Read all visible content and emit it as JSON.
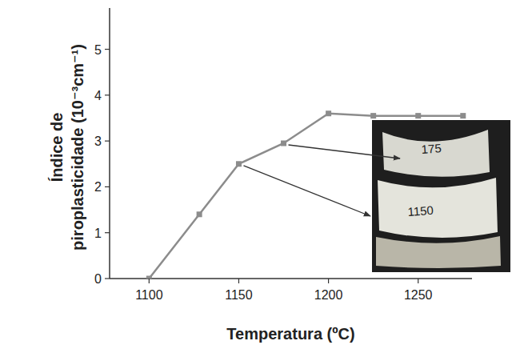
{
  "chart_data": {
    "type": "line",
    "xlabel": "Temperatura (ºC)",
    "ylabel": "Índice de piroplasticidade (10⁻³cm⁻¹)",
    "x": [
      1100,
      1128,
      1150,
      1175,
      1200,
      1225,
      1250,
      1275
    ],
    "series": [
      {
        "name": "Índice de piroplasticidade",
        "color": "#8c8c8c",
        "marker": "square",
        "line_style": "solid",
        "values": [
          0,
          1.4,
          2.5,
          2.95,
          3.6,
          3.55,
          3.55,
          3.55
        ]
      }
    ],
    "xlim": [
      1078,
      1280
    ],
    "xticks": [
      1100,
      1150,
      1200,
      1250
    ],
    "ylim": [
      0,
      5.9
    ],
    "yticks": [
      0,
      1,
      2,
      3,
      4,
      5
    ],
    "grid": false,
    "annotations": [
      "175",
      "1150"
    ]
  }
}
